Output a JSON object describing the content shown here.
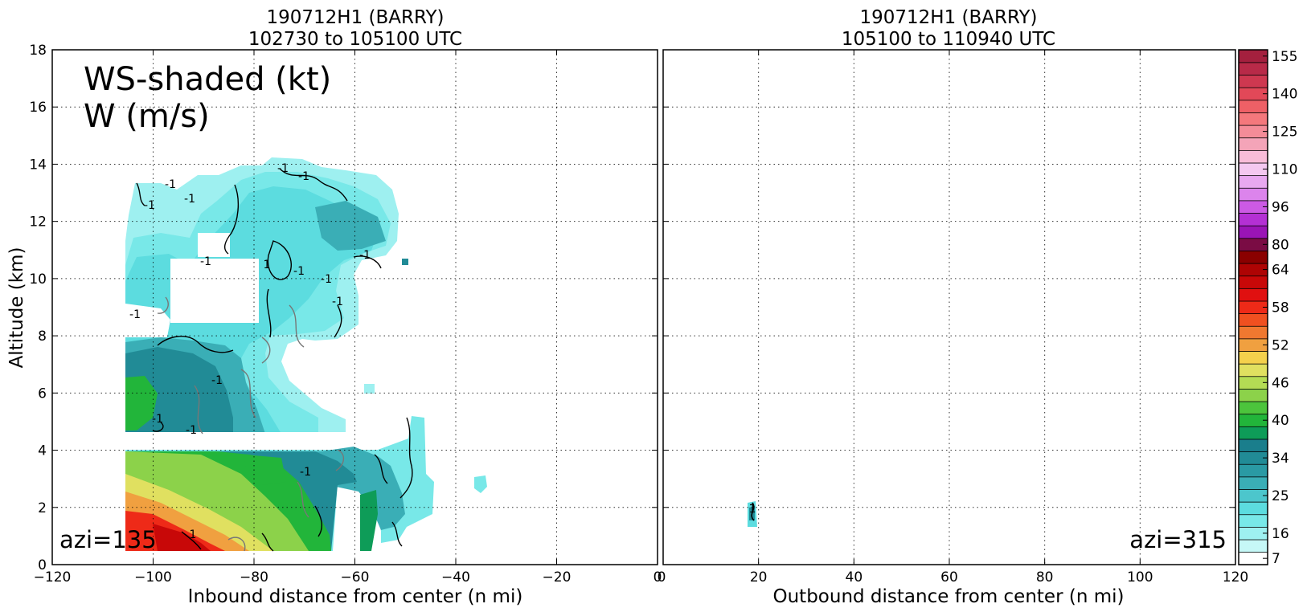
{
  "chart_data": [
    {
      "type": "contour",
      "title_line1": "190712H1 (BARRY)",
      "title_line2": "102730 to 105100 UTC",
      "xlabel": "Inbound distance from center (n mi)",
      "ylabel": "Altitude (km)",
      "xlim": [
        -120,
        0
      ],
      "ylim": [
        0,
        18
      ],
      "xticks": [
        "−120",
        "−100",
        "−80",
        "−60",
        "−40",
        "−20",
        "0"
      ],
      "yticks": [
        "0",
        "2",
        "4",
        "6",
        "8",
        "10",
        "12",
        "14",
        "16",
        "18"
      ],
      "grid": true,
      "annotation_line1": "WS-shaded (kt)",
      "annotation_line2": "W (m/s)",
      "azimuth_label": "azi=135",
      "contour_labels": [
        "-1",
        "-1",
        "-1",
        "-1",
        "-1",
        "-1",
        "1",
        "-1",
        "-1",
        "-1",
        "-1",
        "-1",
        "-1",
        "-1",
        "-1",
        "-1",
        "1"
      ]
    },
    {
      "type": "contour",
      "title_line1": "190712H1 (BARRY)",
      "title_line2": "105100 to 110940 UTC",
      "xlabel": "Outbound distance from center (n mi)",
      "xlim": [
        0,
        120
      ],
      "ylim": [
        0,
        18
      ],
      "xticks": [
        "20",
        "40",
        "60",
        "80",
        "100",
        "120"
      ],
      "grid": true,
      "azimuth_label": "azi=315",
      "contour_labels": [
        "1"
      ]
    }
  ],
  "colorbar": {
    "tick_labels": [
      "7",
      "16",
      "25",
      "34",
      "40",
      "46",
      "52",
      "58",
      "64",
      "80",
      "96",
      "110",
      "125",
      "140",
      "155"
    ],
    "levels_colors": [
      "#ffffff",
      "#c6f8f7",
      "#9ef0f0",
      "#78e8e8",
      "#5cdcdf",
      "#4cc6cc",
      "#3aaeb6",
      "#2a9aa4",
      "#218b96",
      "#1a7e8c",
      "#0e9c58",
      "#22b53a",
      "#4cc43c",
      "#8cd24a",
      "#b4dc54",
      "#e0e060",
      "#f4d04c",
      "#f0a040",
      "#f07830",
      "#f05020",
      "#ee2a18",
      "#e01010",
      "#c80808",
      "#ae0404",
      "#8a0000",
      "#7a0c44",
      "#9a14b6",
      "#b430d4",
      "#cc5ae4",
      "#dc84ec",
      "#e8a8f0",
      "#f4c8f0",
      "#f8bcd8",
      "#f4a4b8",
      "#f48c98",
      "#f4787c",
      "#ee6066",
      "#e24858",
      "#ce3850",
      "#b82a48",
      "#a4203e"
    ]
  }
}
